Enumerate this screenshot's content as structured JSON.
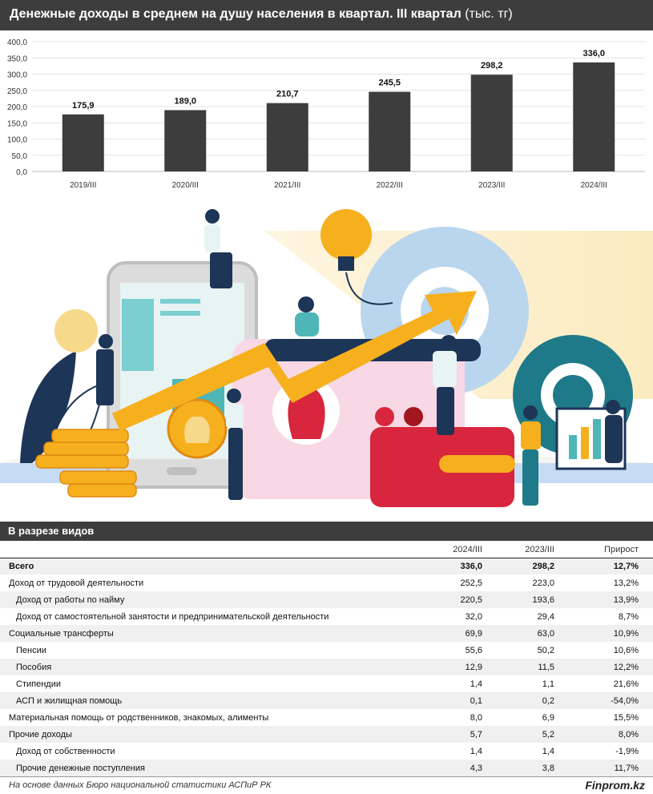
{
  "header": {
    "title": "Денежные доходы в среднем на душу населения в квартал. III квартал",
    "unit": "(тыс. тг)"
  },
  "chart_data": {
    "type": "bar",
    "categories": [
      "2019/III",
      "2020/III",
      "2021/III",
      "2022/III",
      "2023/III",
      "2024/III"
    ],
    "values": [
      175.9,
      189.0,
      210.7,
      245.5,
      298.2,
      336.0
    ],
    "value_labels": [
      "175,9",
      "189,0",
      "210,7",
      "245,5",
      "298,2",
      "336,0"
    ],
    "y_ticks": [
      "0,0",
      "50,0",
      "100,0",
      "150,0",
      "200,0",
      "250,0",
      "300,0",
      "350,0",
      "400,0"
    ],
    "ylim": [
      0,
      400
    ],
    "grid": true,
    "bar_color": "#3d3d3d"
  },
  "illustration": {
    "icon": "business-growth-illustration"
  },
  "section": {
    "title": "В разрезе видов"
  },
  "table": {
    "columns": [
      "2024/III",
      "2023/III",
      "Прирост"
    ],
    "rows": [
      {
        "name": "Всего",
        "v1": "336,0",
        "v2": "298,2",
        "growth": "12,7%"
      },
      {
        "name": "Доход от трудовой деятельности",
        "v1": "252,5",
        "v2": "223,0",
        "growth": "13,2%"
      },
      {
        "name": "Доход от работы по найму",
        "v1": "220,5",
        "v2": "193,6",
        "growth": "13,9%"
      },
      {
        "name": "Доход от самостоятельной занятости и предпринимательской деятельности",
        "v1": "32,0",
        "v2": "29,4",
        "growth": "8,7%"
      },
      {
        "name": "Социальные трансферты",
        "v1": "69,9",
        "v2": "63,0",
        "growth": "10,9%"
      },
      {
        "name": "Пенсии",
        "v1": "55,6",
        "v2": "50,2",
        "growth": "10,6%"
      },
      {
        "name": "Пособия",
        "v1": "12,9",
        "v2": "11,5",
        "growth": "12,2%"
      },
      {
        "name": "Стипендии",
        "v1": "1,4",
        "v2": "1,1",
        "growth": "21,6%"
      },
      {
        "name": "АСП и жилищная помощь",
        "v1": "0,1",
        "v2": "0,2",
        "growth": "-54,0%"
      },
      {
        "name": "Материальная помощь от родственников, знакомых, алименты",
        "v1": "8,0",
        "v2": "6,9",
        "growth": "15,5%"
      },
      {
        "name": "Прочие доходы",
        "v1": "5,7",
        "v2": "5,2",
        "growth": "8,0%"
      },
      {
        "name": "Доход от собственности",
        "v1": "1,4",
        "v2": "1,4",
        "growth": "-1,9%"
      },
      {
        "name": "Прочие денежные поступления",
        "v1": "4,3",
        "v2": "3,8",
        "growth": "11,7%"
      }
    ]
  },
  "footer": {
    "source": "На основе данных Бюро национальной статистики АСПиР РК",
    "brand": "Finprom.kz"
  }
}
